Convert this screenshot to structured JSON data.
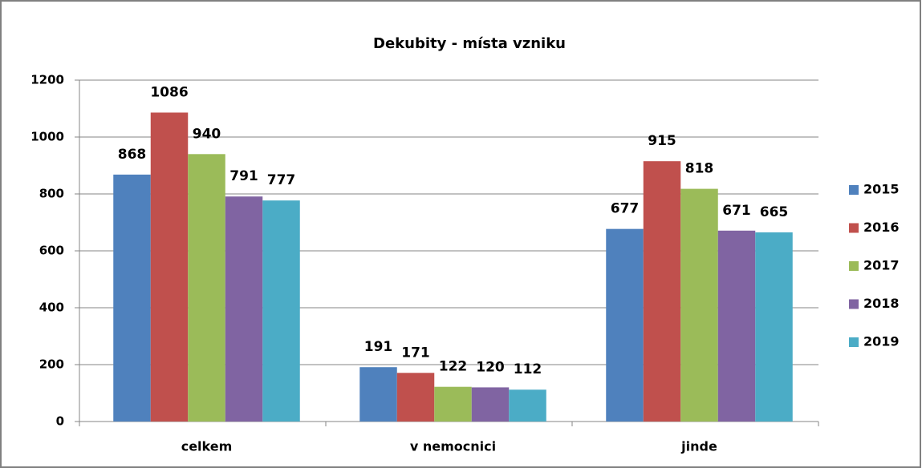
{
  "chart_data": {
    "type": "bar",
    "title": "Dekubity  - místa vzniku",
    "categories": [
      "celkem",
      "v nemocnici",
      "jinde"
    ],
    "series": [
      {
        "name": "2015",
        "color": "#4f81bd",
        "values": [
          868,
          191,
          677
        ]
      },
      {
        "name": "2016",
        "color": "#c0504d",
        "values": [
          1086,
          171,
          915
        ]
      },
      {
        "name": "2017",
        "color": "#9bbb59",
        "values": [
          940,
          122,
          818
        ]
      },
      {
        "name": "2018",
        "color": "#8064a2",
        "values": [
          791,
          120,
          671
        ]
      },
      {
        "name": "2019",
        "color": "#4bacc6",
        "values": [
          777,
          112,
          665
        ]
      }
    ],
    "ylim": [
      0,
      1200
    ],
    "yticks": [
      0,
      200,
      400,
      600,
      800,
      1000,
      1200
    ],
    "grid": true,
    "legend": "right"
  }
}
